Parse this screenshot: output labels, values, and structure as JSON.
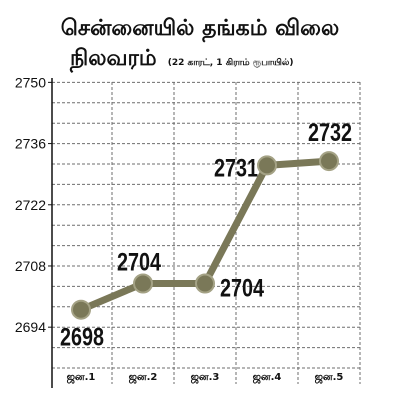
{
  "chart_data": {
    "type": "line",
    "title": [
      "சென்னையில் தங்கம் விலை",
      "நிலவரம்"
    ],
    "subtitle": "(22 காரட், 1 கிராம் ரூபாயில்)",
    "categories": [
      "ஜன.1",
      "ஜன.2",
      "ஜன.3",
      "ஜன.4",
      "ஜன.5"
    ],
    "values": [
      2698,
      2704,
      2704,
      2731,
      2732
    ],
    "show_data_labels": true,
    "yticks": [
      2750,
      2736,
      2722,
      2708,
      2694
    ],
    "ylim": [
      2681,
      2751
    ],
    "grid": true,
    "legend": "none",
    "colors": {
      "line": "#7a7858",
      "marker_edge": "#a4a285",
      "text": "#111111",
      "grid": "#6e6e6e",
      "axis": "#111111"
    }
  }
}
